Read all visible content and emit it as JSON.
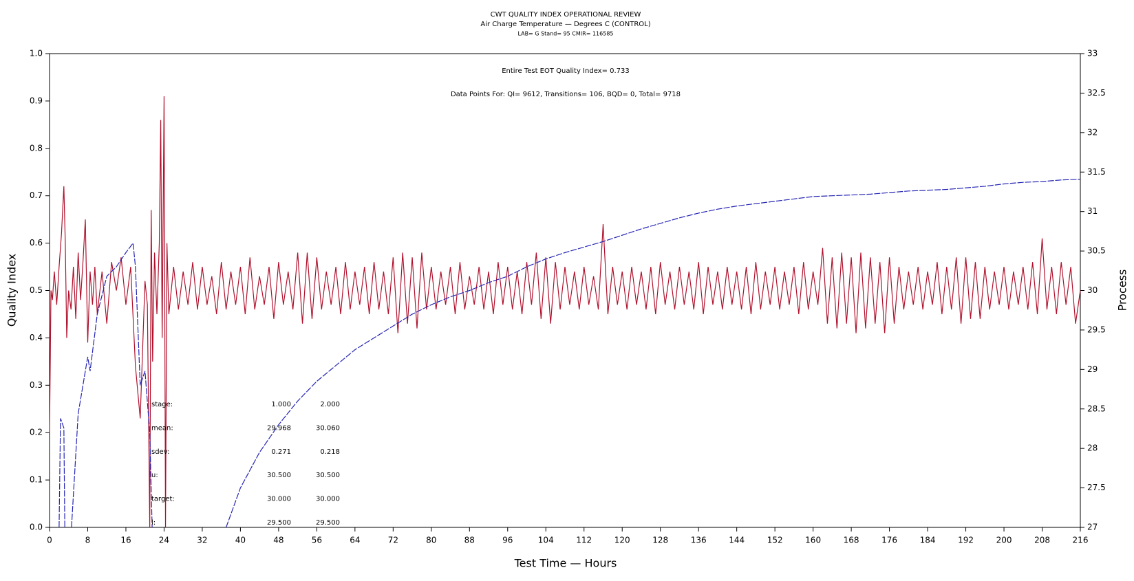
{
  "chart_data": {
    "type": "line",
    "title": "CWT QUALITY INDEX OPERATIONAL REVIEW",
    "subtitle": "Air Charge Temperature — Degrees C (CONTROL)",
    "caption": "LAB= G Stand= 95 CMIR= 116585",
    "annotations": [
      "Entire Test EOT Quality Index=   0.733",
      "Data Points For: QI=  9612, Transitions=   106, BQD=     0, Total=  9718"
    ],
    "stats": [
      {
        "label": "stage:",
        "values": [
          "1.000",
          "2.000"
        ]
      },
      {
        "label": "mean:",
        "values": [
          "29.968",
          "30.060"
        ]
      },
      {
        "label": "sdev:",
        "values": [
          "0.271",
          "0.218"
        ]
      },
      {
        "label": "u:",
        "values": [
          "30.500",
          "30.500"
        ]
      },
      {
        "label": "target:",
        "values": [
          "30.000",
          "30.000"
        ]
      },
      {
        "label": "l:",
        "values": [
          "29.500",
          "29.500"
        ]
      }
    ],
    "x_label": "Test Time — Hours",
    "y_label": "Quality Index",
    "y2_label": "Process",
    "xlim": [
      0,
      216
    ],
    "xticks": [
      0,
      8,
      16,
      24,
      32,
      40,
      48,
      56,
      64,
      72,
      80,
      88,
      96,
      104,
      112,
      120,
      128,
      136,
      144,
      152,
      160,
      168,
      176,
      184,
      192,
      200,
      208,
      216
    ],
    "ylim": [
      0,
      1
    ],
    "yticks": [
      {
        "value": 0,
        "label": "0.0"
      },
      0.1,
      0.2,
      0.3,
      0.4,
      0.5,
      0.6,
      0.7,
      0.8,
      0.9,
      {
        "value": 1,
        "label": "1.0"
      }
    ],
    "y2lim": [
      27,
      33
    ],
    "y2ticks": [
      27,
      27.5,
      28,
      28.5,
      29,
      29.5,
      30,
      30.5,
      31,
      31.5,
      32,
      32.5,
      33
    ],
    "series": [
      {
        "color": "#b0102c",
        "x": [
          0,
          0.3,
          0.6,
          1,
          1.5,
          2,
          2.5,
          3,
          3.3,
          3.6,
          4,
          4.5,
          5,
          5.5,
          6,
          6.5,
          7,
          7.5,
          8,
          8.5,
          9,
          9.5,
          10,
          11,
          12,
          13,
          14,
          15,
          16,
          17,
          18,
          19,
          20,
          20.5,
          21,
          21.3,
          21.6,
          22,
          22.5,
          23,
          23.3,
          23.6,
          24,
          24.3,
          24.6,
          25,
          26,
          27,
          28,
          29,
          30,
          31,
          32,
          33,
          34,
          35,
          36,
          37,
          38,
          39,
          40,
          41,
          42,
          43,
          44,
          45,
          46,
          47,
          48,
          49,
          50,
          51,
          52,
          53,
          54,
          55,
          56,
          57,
          58,
          59,
          60,
          61,
          62,
          63,
          64,
          65,
          66,
          67,
          68,
          69,
          70,
          71,
          72,
          73,
          74,
          75,
          76,
          77,
          78,
          79,
          80,
          81,
          82,
          83,
          84,
          85,
          86,
          87,
          88,
          89,
          90,
          91,
          92,
          93,
          94,
          95,
          96,
          97,
          98,
          99,
          100,
          101,
          102,
          103,
          104,
          105,
          106,
          107,
          108,
          109,
          110,
          111,
          112,
          113,
          114,
          115,
          116,
          117,
          118,
          119,
          120,
          121,
          122,
          123,
          124,
          125,
          126,
          127,
          128,
          129,
          130,
          131,
          132,
          133,
          134,
          135,
          136,
          137,
          138,
          139,
          140,
          141,
          142,
          143,
          144,
          145,
          146,
          147,
          148,
          149,
          150,
          151,
          152,
          153,
          154,
          155,
          156,
          157,
          158,
          159,
          160,
          161,
          162,
          163,
          164,
          165,
          166,
          167,
          168,
          169,
          170,
          171,
          172,
          173,
          174,
          175,
          176,
          177,
          178,
          179,
          180,
          181,
          182,
          183,
          184,
          185,
          186,
          187,
          188,
          189,
          190,
          191,
          192,
          193,
          194,
          195,
          196,
          197,
          198,
          199,
          200,
          201,
          202,
          203,
          204,
          205,
          206,
          207,
          208,
          209,
          210,
          211,
          212,
          213,
          214,
          215,
          216
        ],
        "values": [
          0.2,
          0.5,
          0.48,
          0.54,
          0.47,
          0.55,
          0.62,
          0.72,
          0.6,
          0.4,
          0.5,
          0.46,
          0.55,
          0.44,
          0.58,
          0.48,
          0.56,
          0.65,
          0.39,
          0.54,
          0.47,
          0.55,
          0.45,
          0.54,
          0.43,
          0.56,
          0.5,
          0.57,
          0.47,
          0.55,
          0.34,
          0.23,
          0.52,
          0.47,
          0.0,
          0.67,
          0.35,
          0.58,
          0.45,
          0.6,
          0.86,
          0.4,
          0.91,
          0.0,
          0.6,
          0.45,
          0.55,
          0.46,
          0.54,
          0.47,
          0.56,
          0.46,
          0.55,
          0.47,
          0.53,
          0.45,
          0.56,
          0.46,
          0.54,
          0.47,
          0.55,
          0.45,
          0.57,
          0.46,
          0.53,
          0.47,
          0.55,
          0.44,
          0.56,
          0.47,
          0.54,
          0.46,
          0.58,
          0.43,
          0.58,
          0.44,
          0.57,
          0.46,
          0.54,
          0.47,
          0.55,
          0.45,
          0.56,
          0.46,
          0.54,
          0.47,
          0.55,
          0.45,
          0.56,
          0.46,
          0.54,
          0.45,
          0.57,
          0.41,
          0.58,
          0.43,
          0.57,
          0.42,
          0.58,
          0.46,
          0.55,
          0.46,
          0.54,
          0.47,
          0.55,
          0.45,
          0.56,
          0.46,
          0.53,
          0.47,
          0.55,
          0.46,
          0.54,
          0.45,
          0.56,
          0.47,
          0.55,
          0.46,
          0.54,
          0.45,
          0.56,
          0.47,
          0.58,
          0.44,
          0.57,
          0.43,
          0.56,
          0.46,
          0.55,
          0.47,
          0.54,
          0.46,
          0.55,
          0.47,
          0.53,
          0.46,
          0.64,
          0.45,
          0.55,
          0.47,
          0.54,
          0.46,
          0.55,
          0.47,
          0.54,
          0.46,
          0.55,
          0.45,
          0.56,
          0.47,
          0.54,
          0.46,
          0.55,
          0.47,
          0.54,
          0.46,
          0.56,
          0.45,
          0.55,
          0.47,
          0.54,
          0.46,
          0.55,
          0.47,
          0.54,
          0.46,
          0.55,
          0.45,
          0.56,
          0.46,
          0.54,
          0.47,
          0.55,
          0.46,
          0.54,
          0.47,
          0.55,
          0.45,
          0.56,
          0.46,
          0.54,
          0.47,
          0.59,
          0.43,
          0.57,
          0.42,
          0.58,
          0.43,
          0.57,
          0.41,
          0.58,
          0.42,
          0.57,
          0.43,
          0.56,
          0.41,
          0.57,
          0.43,
          0.55,
          0.46,
          0.54,
          0.47,
          0.55,
          0.46,
          0.54,
          0.47,
          0.56,
          0.45,
          0.55,
          0.46,
          0.57,
          0.43,
          0.57,
          0.44,
          0.56,
          0.44,
          0.55,
          0.46,
          0.54,
          0.47,
          0.55,
          0.46,
          0.54,
          0.47,
          0.55,
          0.46,
          0.56,
          0.45,
          0.61,
          0.46,
          0.55,
          0.45,
          0.56,
          0.47,
          0.55,
          0.43,
          0.5
        ]
      },
      {
        "color": "#2424b4",
        "axis": "y2",
        "dashed": true,
        "x": [
          2,
          2.3,
          3,
          3.2,
          3.5,
          4.6,
          6,
          7,
          8,
          8.5,
          10,
          12,
          14,
          16,
          17.5,
          18,
          19,
          20,
          21,
          21.5,
          29,
          37,
          40,
          44,
          48,
          52,
          56,
          60,
          64,
          68,
          72,
          76,
          80,
          84,
          88,
          92,
          96,
          100,
          104,
          108,
          112,
          116,
          120,
          124,
          128,
          132,
          136,
          140,
          144,
          148,
          152,
          156,
          160,
          164,
          168,
          172,
          176,
          180,
          184,
          188,
          192,
          196,
          200,
          204,
          208,
          212,
          216
        ],
        "values": [
          27,
          28.38,
          28.26,
          27,
          null,
          27,
          28.44,
          28.8,
          29.16,
          28.98,
          29.7,
          30.18,
          30.3,
          30.48,
          30.6,
          30.3,
          28.8,
          28.98,
          28.2,
          27,
          null,
          27,
          27.5,
          27.95,
          28.3,
          28.6,
          28.85,
          29.05,
          29.25,
          29.4,
          29.55,
          29.7,
          29.82,
          29.92,
          30.0,
          30.1,
          30.18,
          30.3,
          30.4,
          30.48,
          30.55,
          30.62,
          30.7,
          30.78,
          30.85,
          30.92,
          30.98,
          31.03,
          31.07,
          31.1,
          31.13,
          31.16,
          31.19,
          31.2,
          31.21,
          31.22,
          31.24,
          31.26,
          31.27,
          31.28,
          31.3,
          31.32,
          31.35,
          31.37,
          31.38,
          31.4,
          31.41
        ]
      }
    ]
  }
}
